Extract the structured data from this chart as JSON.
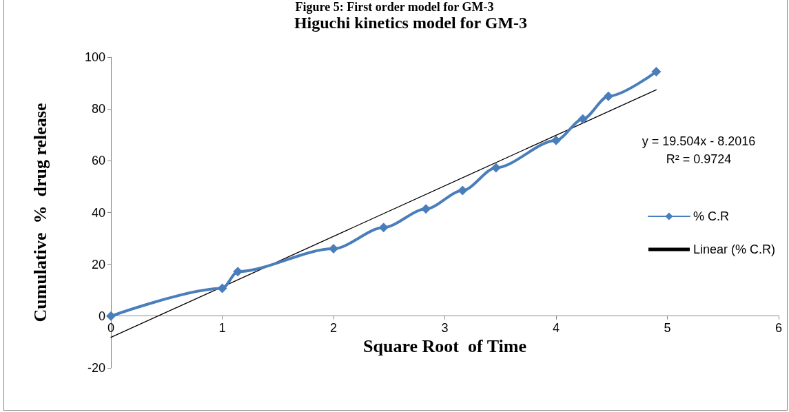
{
  "chart_data": {
    "type": "line",
    "title": "Higuchi kinetics model for GM-3",
    "xlabel": "Square Root  of Time",
    "ylabel": "Cumulative  %  drug release",
    "annotations": [
      "Figure 5: First order model for GM-3",
      "y = 19.504x - 8.2016\nR² = 0.9724"
    ],
    "series": [
      {
        "name": "% C.R",
        "color": "#4a7ebb",
        "marker": "diamond",
        "x": [
          0,
          1,
          1.14,
          2,
          2.45,
          2.83,
          3.16,
          3.46,
          4,
          4.24,
          4.47,
          4.9
        ],
        "values": [
          0,
          10.7,
          17.2,
          26,
          34.2,
          41.4,
          48.5,
          57.3,
          67.9,
          76.1,
          84.9,
          94.4
        ]
      },
      {
        "name": "Linear (% C.R)",
        "color": "#000000",
        "marker": "none",
        "x": [
          0,
          4.9
        ],
        "values": [
          -8.2,
          87.4
        ]
      }
    ],
    "xlim": [
      0,
      6
    ],
    "xticks": [
      0,
      1,
      2,
      3,
      4,
      5,
      6
    ],
    "ylim": [
      -20,
      100
    ],
    "yticks": [
      -20,
      0,
      20,
      40,
      60,
      80,
      100
    ],
    "legend": "right"
  }
}
